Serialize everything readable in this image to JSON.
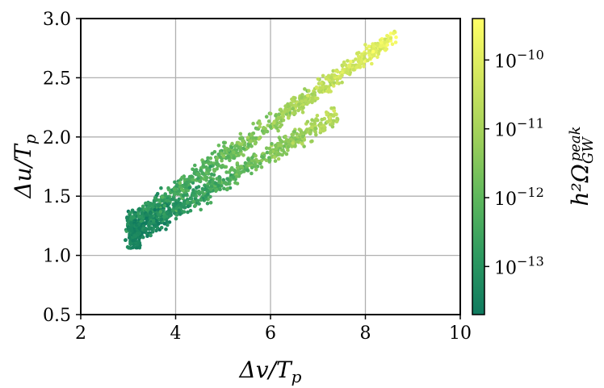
{
  "chart_data": {
    "type": "scatter",
    "xlabel": "Δv/T_p",
    "ylabel": "Δu/T_p",
    "xlim": [
      2,
      10
    ],
    "ylim": [
      0.5,
      3.0
    ],
    "x_ticks": [
      "2",
      "4",
      "6",
      "8",
      "10"
    ],
    "y_ticks": [
      "0.5",
      "1.0",
      "1.5",
      "2.0",
      "2.5",
      "3.0"
    ],
    "grid": true,
    "colorbar": {
      "label": "h²Ω_GW^peak",
      "scale": "log",
      "range": [
        2e-14,
        4e-10
      ],
      "ticks": [
        {
          "value": 1e-13,
          "mantissa": "10",
          "exponent": "−13"
        },
        {
          "value": 1e-12,
          "mantissa": "10",
          "exponent": "−12"
        },
        {
          "value": 1e-11,
          "mantissa": "10",
          "exponent": "−11"
        },
        {
          "value": 1e-10,
          "mantissa": "10",
          "exponent": "−10"
        }
      ],
      "colormap": [
        "#0f7a5f",
        "#2e9a60",
        "#5fb85c",
        "#9fd05a",
        "#d2e65e",
        "#ffff66"
      ]
    },
    "series_description_bands": [
      {
        "x_start": 3.0,
        "x_end": 8.6,
        "y_start": 1.25,
        "y_end": 2.85,
        "log_color_start": -13.2,
        "log_color_end": -9.7
      },
      {
        "x_start": 3.1,
        "x_end": 7.4,
        "y_start": 1.18,
        "y_end": 2.18,
        "log_color_start": -13.6,
        "log_color_end": -10.6
      }
    ]
  }
}
